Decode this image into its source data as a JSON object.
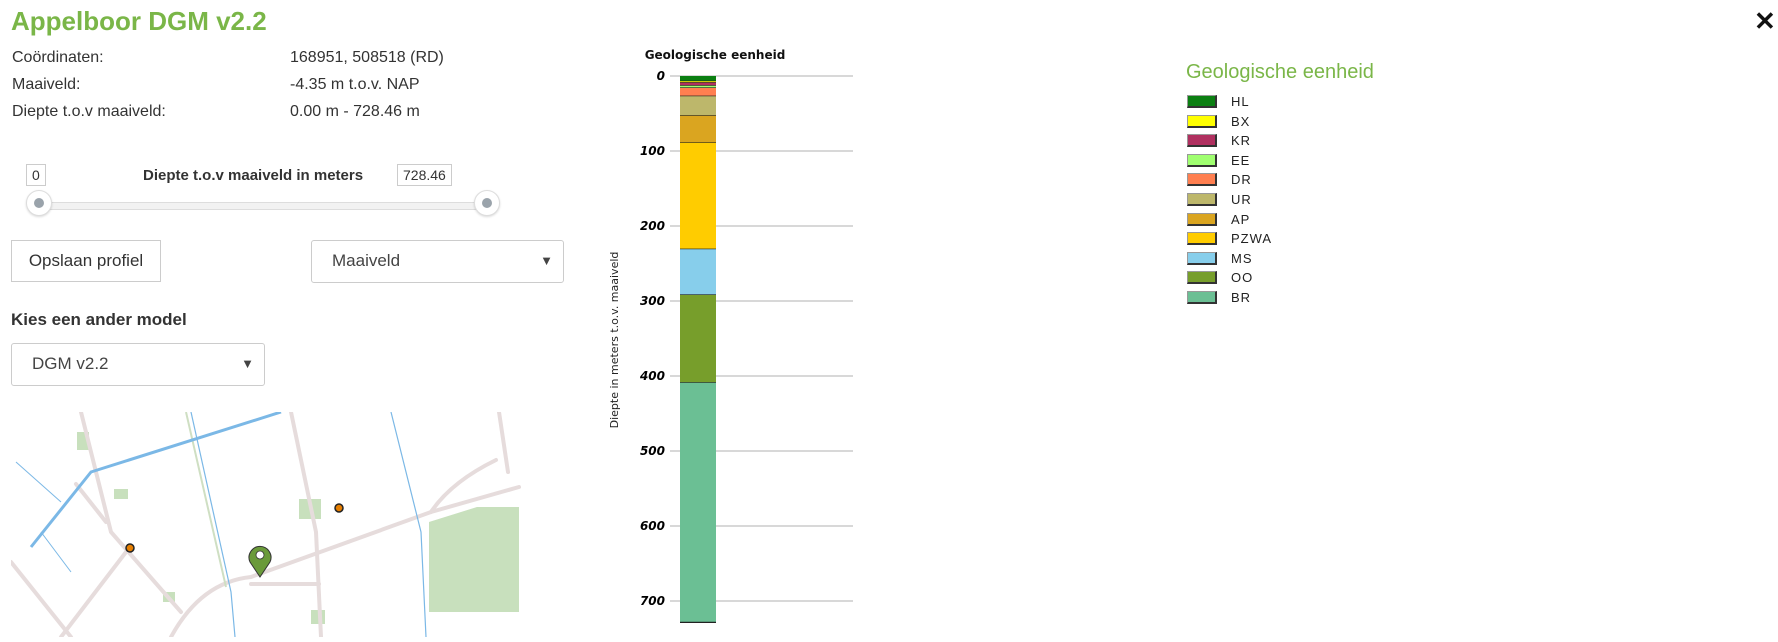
{
  "header": {
    "title": "Appelboor DGM v2.2",
    "close_icon": "close-icon"
  },
  "info": [
    {
      "label": "Coördinaten:",
      "value": "168951, 508518 (RD)"
    },
    {
      "label": "Maaiveld:",
      "value": "-4.35 m t.o.v. NAP"
    },
    {
      "label": "Diepte t.o.v maaiveld:",
      "value": "0.00 m - 728.46 m"
    }
  ],
  "slider": {
    "label": "Diepte t.o.v maaiveld in meters",
    "min_value": "0",
    "max_value": "728.46",
    "range_min": 0,
    "range_max": 728.46
  },
  "buttons": {
    "save": "Opslaan profiel"
  },
  "reference_select": {
    "value": "Maaiveld"
  },
  "model": {
    "heading": "Kies een ander model",
    "value": "DGM v2.2"
  },
  "chart_data": {
    "type": "bar",
    "title": "Geologische eenheid",
    "ylabel": "Diepte in meters t.o.v. maaiveld",
    "ylim": [
      0,
      728.46
    ],
    "yticks": [
      "0",
      "100",
      "200",
      "300",
      "400",
      "500",
      "600",
      "700"
    ],
    "grid": true,
    "layers": [
      {
        "unit": "HL",
        "top": 0,
        "bottom": 7,
        "color": "#0b7f12"
      },
      {
        "unit": "BX",
        "top": 7,
        "bottom": 9,
        "color": "#ffff00"
      },
      {
        "unit": "KR",
        "top": 9,
        "bottom": 13,
        "color": "#b03060"
      },
      {
        "unit": "EE",
        "top": 13,
        "bottom": 16,
        "color": "#a0ff70"
      },
      {
        "unit": "DR",
        "top": 16,
        "bottom": 27,
        "color": "#ff7f50"
      },
      {
        "unit": "UR",
        "top": 27,
        "bottom": 53,
        "color": "#bdb76b"
      },
      {
        "unit": "AP",
        "top": 53,
        "bottom": 89,
        "color": "#daa520"
      },
      {
        "unit": "PZWA",
        "top": 89,
        "bottom": 231,
        "color": "#ffcc00"
      },
      {
        "unit": "MS",
        "top": 231,
        "bottom": 292,
        "color": "#87ceeb"
      },
      {
        "unit": "OO",
        "top": 292,
        "bottom": 409,
        "color": "#779e2b"
      },
      {
        "unit": "BR",
        "top": 409,
        "bottom": 728.46,
        "color": "#6bbf94"
      }
    ]
  },
  "legend": {
    "title": "Geologische eenheid",
    "items": [
      {
        "label": "HL",
        "color": "#0b7f12"
      },
      {
        "label": "BX",
        "color": "#ffff00"
      },
      {
        "label": "KR",
        "color": "#b03060"
      },
      {
        "label": "EE",
        "color": "#a0ff70"
      },
      {
        "label": "DR",
        "color": "#ff7f50"
      },
      {
        "label": "UR",
        "color": "#bdb76b"
      },
      {
        "label": "AP",
        "color": "#daa520"
      },
      {
        "label": "PZWA",
        "color": "#ffcc00"
      },
      {
        "label": "MS",
        "color": "#87ceeb"
      },
      {
        "label": "OO",
        "color": "#779e2b"
      },
      {
        "label": "BR",
        "color": "#6bbf94"
      }
    ]
  }
}
